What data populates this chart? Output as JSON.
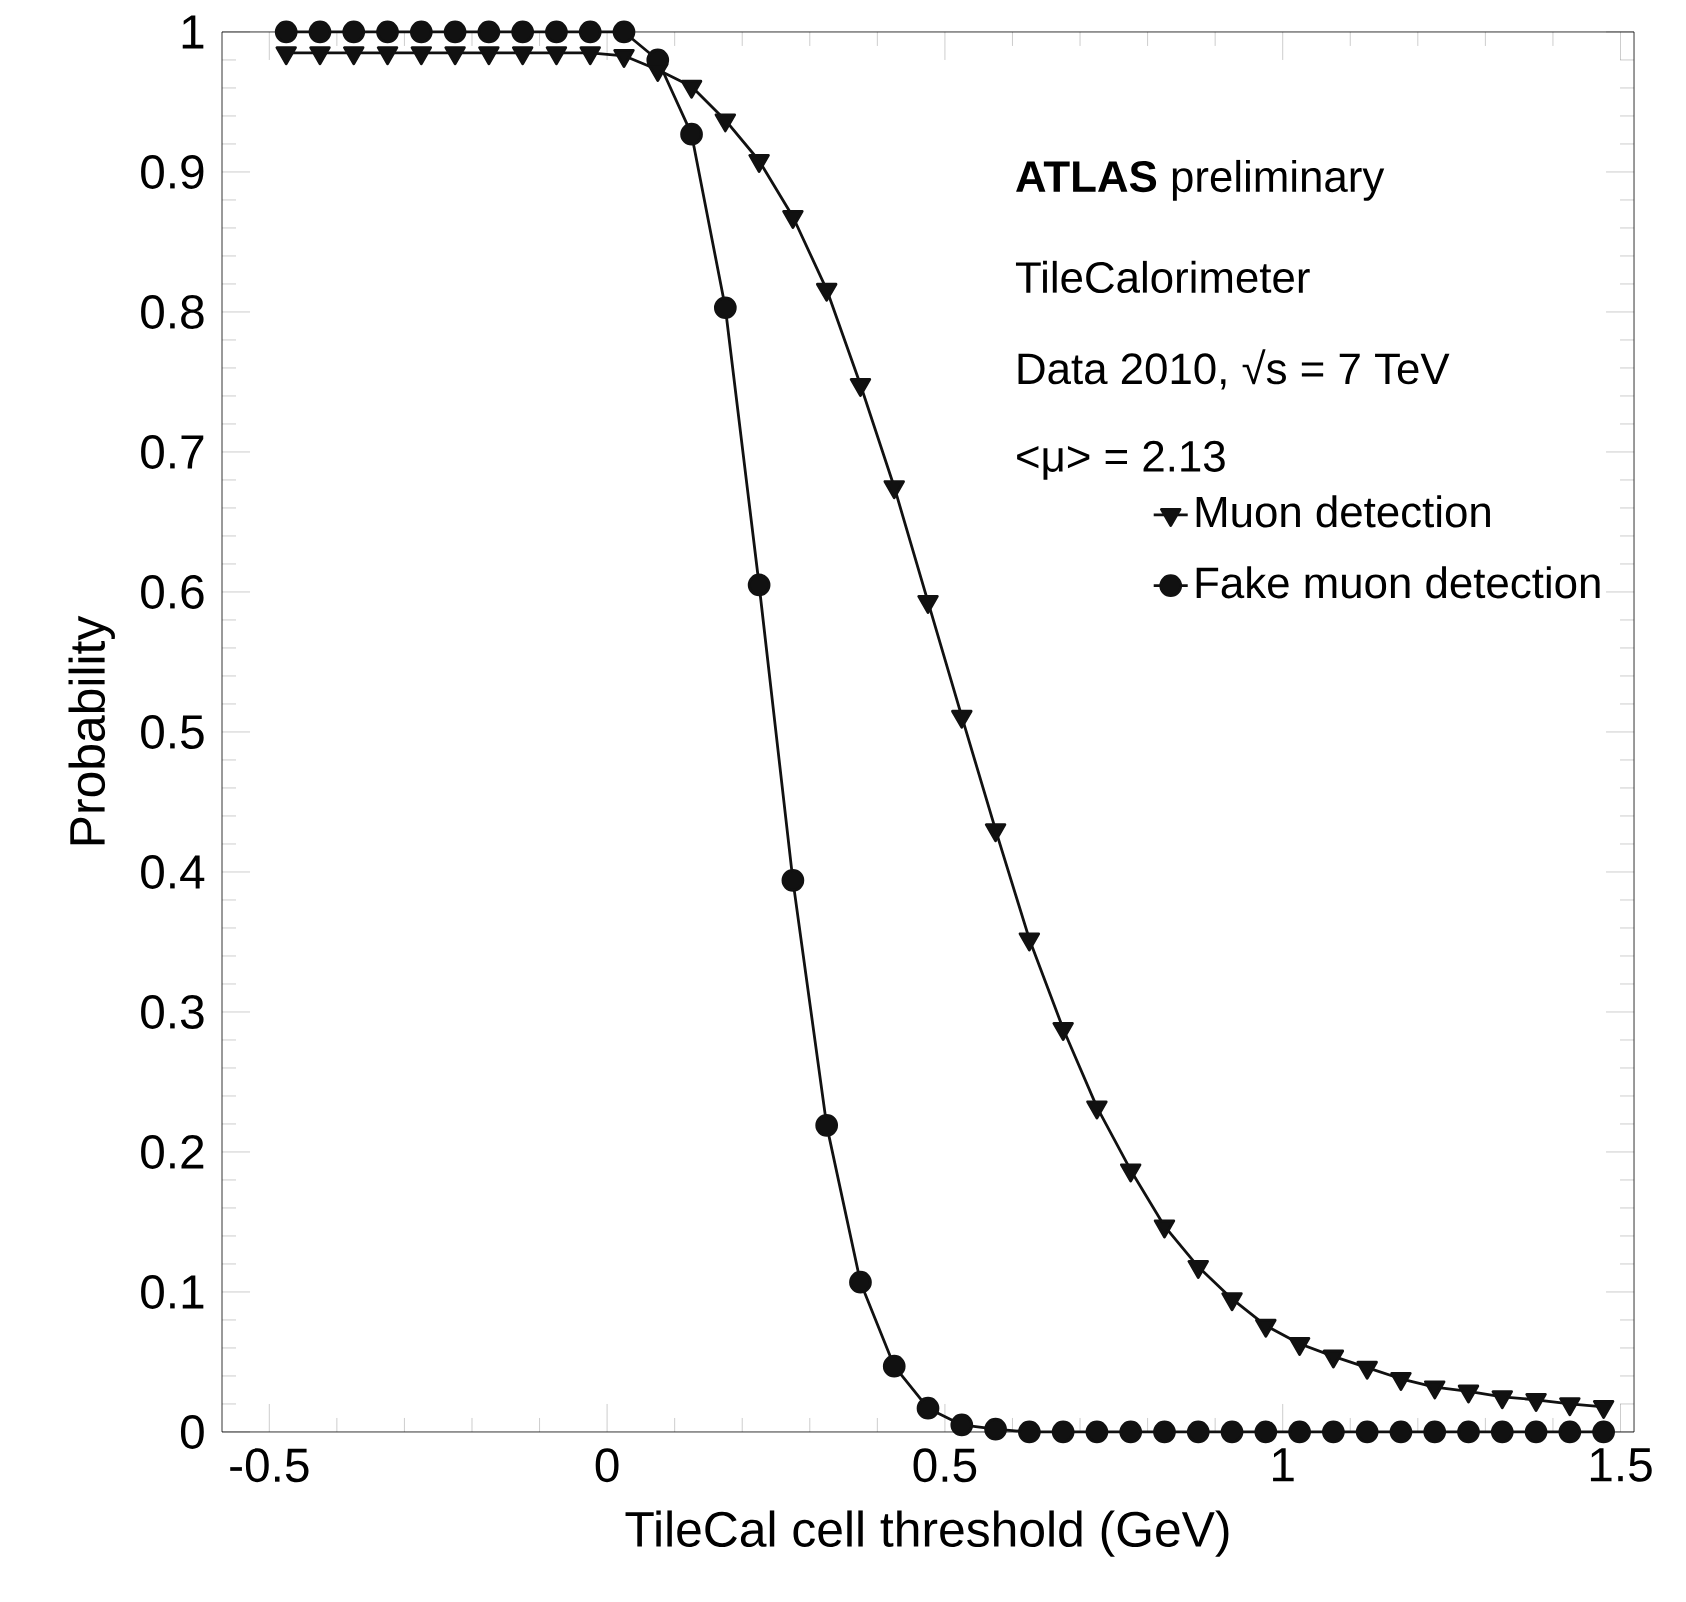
{
  "chart_data": {
    "type": "line",
    "xlabel": "TileCal cell threshold (GeV)",
    "ylabel": "Probability",
    "annotations": [
      "**ATLAS** preliminary",
      "TileCalorimeter",
      "Data 2010, √s = 7 TeV",
      "<μ> = 2.13"
    ],
    "x": [
      -0.475,
      -0.425,
      -0.375,
      -0.325,
      -0.275,
      -0.225,
      -0.175,
      -0.125,
      -0.075,
      -0.025,
      0.025,
      0.075,
      0.125,
      0.175,
      0.225,
      0.275,
      0.325,
      0.375,
      0.425,
      0.475,
      0.525,
      0.575,
      0.625,
      0.675,
      0.725,
      0.775,
      0.825,
      0.875,
      0.925,
      0.975,
      1.025,
      1.075,
      1.125,
      1.175,
      1.225,
      1.275,
      1.325,
      1.375,
      1.425,
      1.475
    ],
    "series": [
      {
        "name": "Muon detection",
        "color": "#111111",
        "marker": "triangle",
        "values": [
          0.985,
          0.985,
          0.985,
          0.985,
          0.985,
          0.985,
          0.985,
          0.985,
          0.985,
          0.985,
          0.983,
          0.973,
          0.961,
          0.937,
          0.908,
          0.868,
          0.816,
          0.748,
          0.675,
          0.593,
          0.511,
          0.43,
          0.352,
          0.288,
          0.232,
          0.187,
          0.147,
          0.118,
          0.095,
          0.076,
          0.063,
          0.054,
          0.046,
          0.038,
          0.032,
          0.029,
          0.025,
          0.023,
          0.02,
          0.018
        ]
      },
      {
        "name": "Fake muon detection",
        "color": "#111111",
        "marker": "circle",
        "values": [
          1.0,
          1.0,
          1.0,
          1.0,
          1.0,
          1.0,
          1.0,
          1.0,
          1.0,
          1.0,
          1.0,
          0.98,
          0.927,
          0.803,
          0.605,
          0.394,
          0.219,
          0.107,
          0.047,
          0.017,
          0.005,
          0.002,
          0,
          0,
          0,
          0,
          0,
          0,
          0,
          0,
          0,
          0,
          0,
          0,
          0,
          0,
          0,
          0,
          0,
          0
        ]
      }
    ],
    "xlim": [
      -0.57,
      1.52
    ],
    "ylim": [
      0,
      1
    ],
    "xticks": [
      -0.5,
      0,
      0.5,
      1,
      1.5
    ],
    "yticks": [
      0,
      0.1,
      0.2,
      0.3,
      0.4,
      0.5,
      0.6,
      0.7,
      0.8,
      0.9,
      1
    ],
    "grid": false,
    "legend": "top right",
    "line_style": "solid"
  }
}
